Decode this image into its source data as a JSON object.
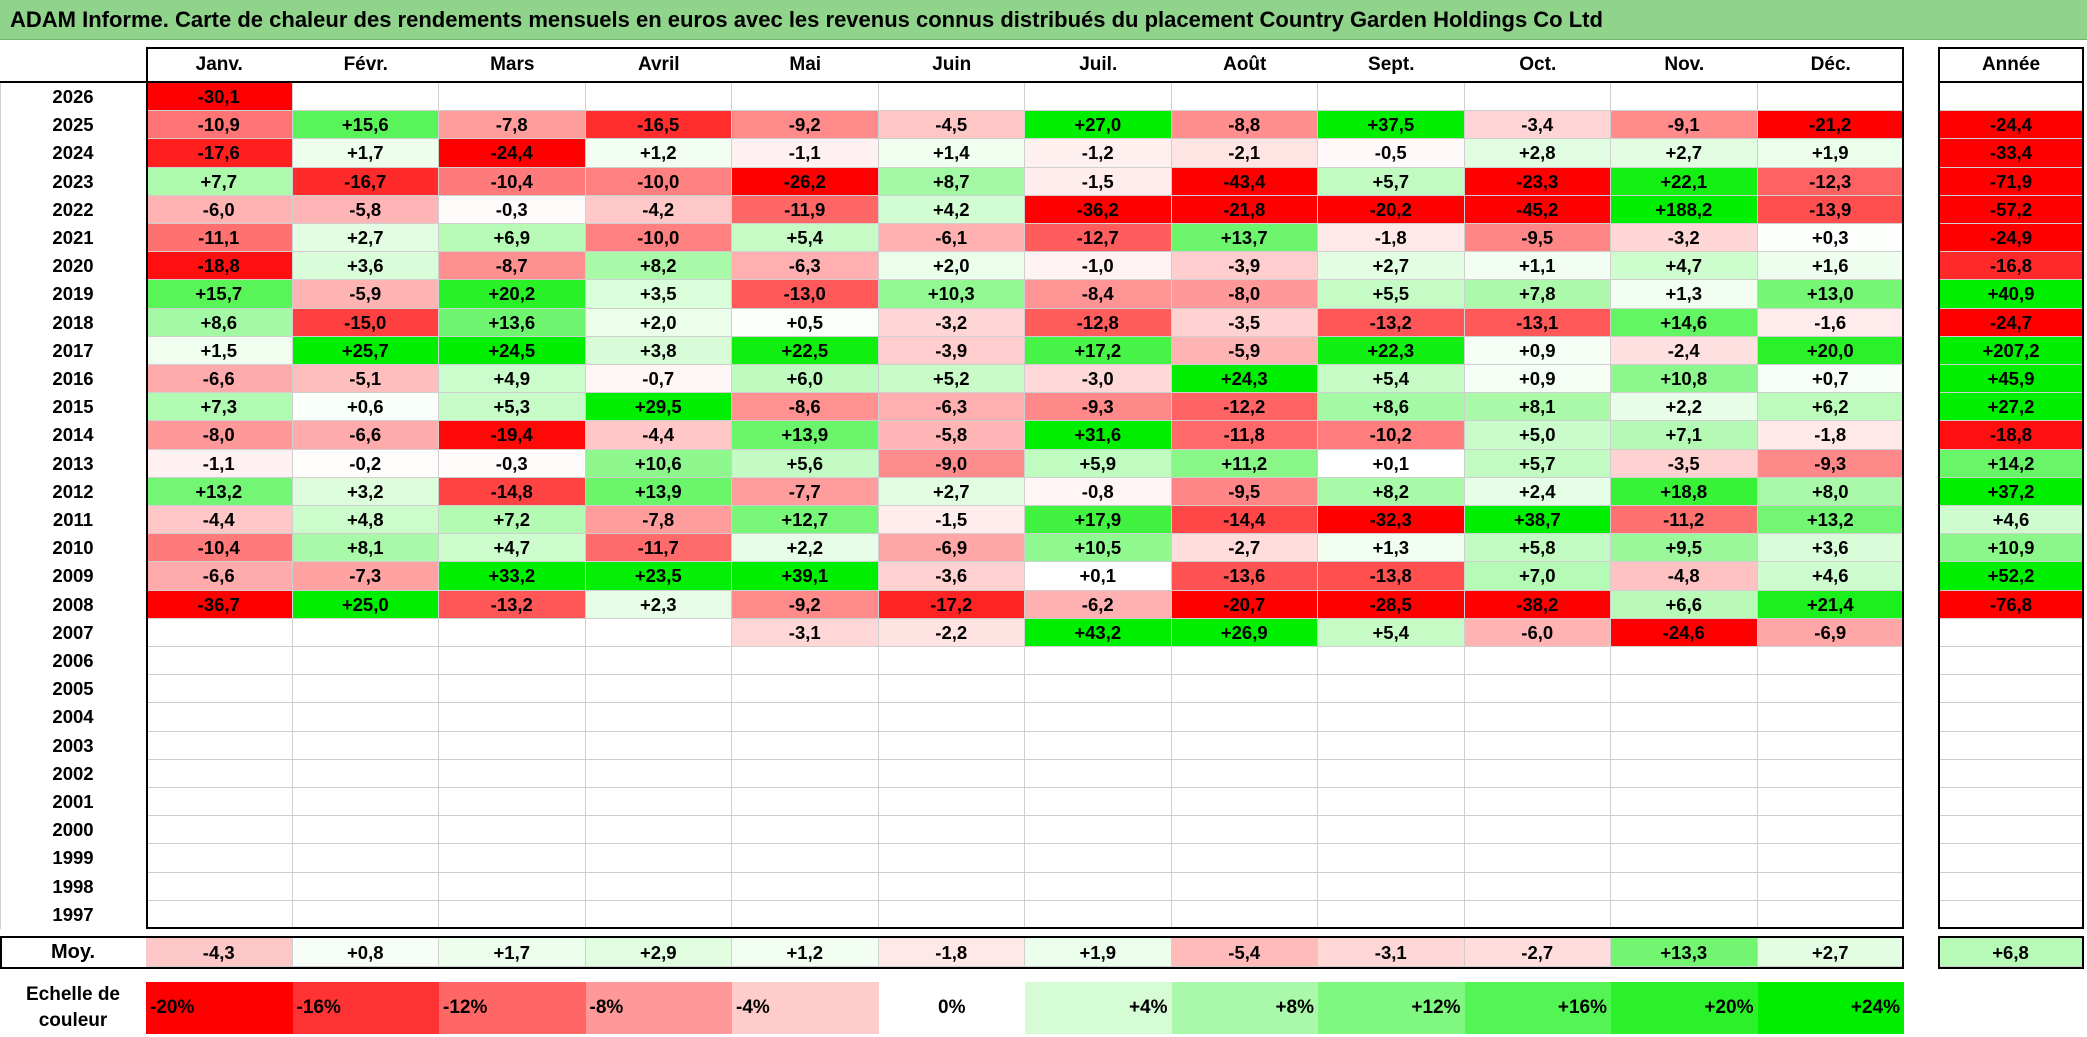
{
  "title": "ADAM Informe. Carte de chaleur des rendements mensuels en euros avec les revenus connus distribués du placement Country Garden Holdings Co Ltd",
  "chart_data": {
    "type": "heatmap",
    "months": [
      "Janv.",
      "Févr.",
      "Mars",
      "Avril",
      "Mai",
      "Juin",
      "Juil.",
      "Août",
      "Sept.",
      "Oct.",
      "Nov.",
      "Déc."
    ],
    "year_header": "Année",
    "rows": [
      {
        "year": "2026",
        "values": [
          "-30,1",
          null,
          null,
          null,
          null,
          null,
          null,
          null,
          null,
          null,
          null,
          null
        ],
        "annual": null
      },
      {
        "year": "2025",
        "values": [
          "-10,9",
          "+15,6",
          "-7,8",
          "-16,5",
          "-9,2",
          "-4,5",
          "+27,0",
          "-8,8",
          "+37,5",
          "-3,4",
          "-9,1",
          "-21,2"
        ],
        "annual": "-24,4"
      },
      {
        "year": "2024",
        "values": [
          "-17,6",
          "+1,7",
          "-24,4",
          "+1,2",
          "-1,1",
          "+1,4",
          "-1,2",
          "-2,1",
          "-0,5",
          "+2,8",
          "+2,7",
          "+1,9"
        ],
        "annual": "-33,4"
      },
      {
        "year": "2023",
        "values": [
          "+7,7",
          "-16,7",
          "-10,4",
          "-10,0",
          "-26,2",
          "+8,7",
          "-1,5",
          "-43,4",
          "+5,7",
          "-23,3",
          "+22,1",
          "-12,3"
        ],
        "annual": "-71,9"
      },
      {
        "year": "2022",
        "values": [
          "-6,0",
          "-5,8",
          "-0,3",
          "-4,2",
          "-11,9",
          "+4,2",
          "-36,2",
          "-21,8",
          "-20,2",
          "-45,2",
          "+188,2",
          "-13,9"
        ],
        "annual": "-57,2"
      },
      {
        "year": "2021",
        "values": [
          "-11,1",
          "+2,7",
          "+6,9",
          "-10,0",
          "+5,4",
          "-6,1",
          "-12,7",
          "+13,7",
          "-1,8",
          "-9,5",
          "-3,2",
          "+0,3"
        ],
        "annual": "-24,9"
      },
      {
        "year": "2020",
        "values": [
          "-18,8",
          "+3,6",
          "-8,7",
          "+8,2",
          "-6,3",
          "+2,0",
          "-1,0",
          "-3,9",
          "+2,7",
          "+1,1",
          "+4,7",
          "+1,6"
        ],
        "annual": "-16,8"
      },
      {
        "year": "2019",
        "values": [
          "+15,7",
          "-5,9",
          "+20,2",
          "+3,5",
          "-13,0",
          "+10,3",
          "-8,4",
          "-8,0",
          "+5,5",
          "+7,8",
          "+1,3",
          "+13,0"
        ],
        "annual": "+40,9"
      },
      {
        "year": "2018",
        "values": [
          "+8,6",
          "-15,0",
          "+13,6",
          "+2,0",
          "+0,5",
          "-3,2",
          "-12,8",
          "-3,5",
          "-13,2",
          "-13,1",
          "+14,6",
          "-1,6"
        ],
        "annual": "-24,7"
      },
      {
        "year": "2017",
        "values": [
          "+1,5",
          "+25,7",
          "+24,5",
          "+3,8",
          "+22,5",
          "-3,9",
          "+17,2",
          "-5,9",
          "+22,3",
          "+0,9",
          "-2,4",
          "+20,0"
        ],
        "annual": "+207,2"
      },
      {
        "year": "2016",
        "values": [
          "-6,6",
          "-5,1",
          "+4,9",
          "-0,7",
          "+6,0",
          "+5,2",
          "-3,0",
          "+24,3",
          "+5,4",
          "+0,9",
          "+10,8",
          "+0,7"
        ],
        "annual": "+45,9"
      },
      {
        "year": "2015",
        "values": [
          "+7,3",
          "+0,6",
          "+5,3",
          "+29,5",
          "-8,6",
          "-6,3",
          "-9,3",
          "-12,2",
          "+8,6",
          "+8,1",
          "+2,2",
          "+6,2"
        ],
        "annual": "+27,2"
      },
      {
        "year": "2014",
        "values": [
          "-8,0",
          "-6,6",
          "-19,4",
          "-4,4",
          "+13,9",
          "-5,8",
          "+31,6",
          "-11,8",
          "-10,2",
          "+5,0",
          "+7,1",
          "-1,8"
        ],
        "annual": "-18,8"
      },
      {
        "year": "2013",
        "values": [
          "-1,1",
          "-0,2",
          "-0,3",
          "+10,6",
          "+5,6",
          "-9,0",
          "+5,9",
          "+11,2",
          "+0,1",
          "+5,7",
          "-3,5",
          "-9,3"
        ],
        "annual": "+14,2"
      },
      {
        "year": "2012",
        "values": [
          "+13,2",
          "+3,2",
          "-14,8",
          "+13,9",
          "-7,7",
          "+2,7",
          "-0,8",
          "-9,5",
          "+8,2",
          "+2,4",
          "+18,8",
          "+8,0"
        ],
        "annual": "+37,2"
      },
      {
        "year": "2011",
        "values": [
          "-4,4",
          "+4,8",
          "+7,2",
          "-7,8",
          "+12,7",
          "-1,5",
          "+17,9",
          "-14,4",
          "-32,3",
          "+38,7",
          "-11,2",
          "+13,2"
        ],
        "annual": "+4,6"
      },
      {
        "year": "2010",
        "values": [
          "-10,4",
          "+8,1",
          "+4,7",
          "-11,7",
          "+2,2",
          "-6,9",
          "+10,5",
          "-2,7",
          "+1,3",
          "+5,8",
          "+9,5",
          "+3,6"
        ],
        "annual": "+10,9"
      },
      {
        "year": "2009",
        "values": [
          "-6,6",
          "-7,3",
          "+33,2",
          "+23,5",
          "+39,1",
          "-3,6",
          "+0,1",
          "-13,6",
          "-13,8",
          "+7,0",
          "-4,8",
          "+4,6"
        ],
        "annual": "+52,2"
      },
      {
        "year": "2008",
        "values": [
          "-36,7",
          "+25,0",
          "-13,2",
          "+2,3",
          "-9,2",
          "-17,2",
          "-6,2",
          "-20,7",
          "-28,5",
          "-38,2",
          "+6,6",
          "+21,4"
        ],
        "annual": "-76,8"
      },
      {
        "year": "2007",
        "values": [
          null,
          null,
          null,
          null,
          "-3,1",
          "-2,2",
          "+43,2",
          "+26,9",
          "+5,4",
          "-6,0",
          "-24,6",
          "-6,9"
        ],
        "annual": null
      },
      {
        "year": "2006",
        "values": [
          null,
          null,
          null,
          null,
          null,
          null,
          null,
          null,
          null,
          null,
          null,
          null
        ],
        "annual": null
      },
      {
        "year": "2005",
        "values": [
          null,
          null,
          null,
          null,
          null,
          null,
          null,
          null,
          null,
          null,
          null,
          null
        ],
        "annual": null
      },
      {
        "year": "2004",
        "values": [
          null,
          null,
          null,
          null,
          null,
          null,
          null,
          null,
          null,
          null,
          null,
          null
        ],
        "annual": null
      },
      {
        "year": "2003",
        "values": [
          null,
          null,
          null,
          null,
          null,
          null,
          null,
          null,
          null,
          null,
          null,
          null
        ],
        "annual": null
      },
      {
        "year": "2002",
        "values": [
          null,
          null,
          null,
          null,
          null,
          null,
          null,
          null,
          null,
          null,
          null,
          null
        ],
        "annual": null
      },
      {
        "year": "2001",
        "values": [
          null,
          null,
          null,
          null,
          null,
          null,
          null,
          null,
          null,
          null,
          null,
          null
        ],
        "annual": null
      },
      {
        "year": "2000",
        "values": [
          null,
          null,
          null,
          null,
          null,
          null,
          null,
          null,
          null,
          null,
          null,
          null
        ],
        "annual": null
      },
      {
        "year": "1999",
        "values": [
          null,
          null,
          null,
          null,
          null,
          null,
          null,
          null,
          null,
          null,
          null,
          null
        ],
        "annual": null
      },
      {
        "year": "1998",
        "values": [
          null,
          null,
          null,
          null,
          null,
          null,
          null,
          null,
          null,
          null,
          null,
          null
        ],
        "annual": null
      },
      {
        "year": "1997",
        "values": [
          null,
          null,
          null,
          null,
          null,
          null,
          null,
          null,
          null,
          null,
          null,
          null
        ],
        "annual": null
      }
    ],
    "average": {
      "label": "Moy.",
      "values": [
        "-4,3",
        "+0,8",
        "+1,7",
        "+2,9",
        "+1,2",
        "-1,8",
        "+1,9",
        "-5,4",
        "-3,1",
        "-2,7",
        "+13,3",
        "+2,7"
      ],
      "annual": "+6,8"
    },
    "color_scale": {
      "label": "Echelle de couleur",
      "steps": [
        "-20%",
        "-16%",
        "-12%",
        "-8%",
        "-4%",
        "0%",
        "+4%",
        "+8%",
        "+12%",
        "+16%",
        "+20%",
        "+24%"
      ],
      "step_values": [
        -20,
        -16,
        -12,
        -8,
        -4,
        0,
        4,
        8,
        12,
        16,
        20,
        24
      ],
      "neg_color": "#ff0000",
      "pos_color": "#00ee00",
      "neutral_color": "#ffffff"
    }
  }
}
